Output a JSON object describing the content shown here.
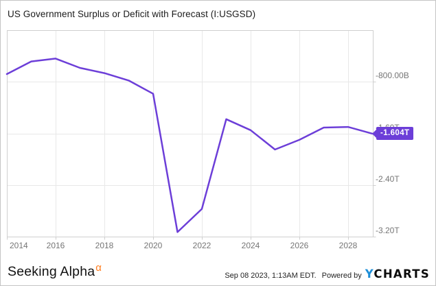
{
  "title": "US Government Surplus or Deficit with Forecast (I:USGSD)",
  "chart_data": {
    "type": "line",
    "title": "US Government Surplus or Deficit with Forecast (I:USGSD)",
    "ticker": "I:USGSD",
    "x": [
      2014,
      2015,
      2016,
      2017,
      2018,
      2019,
      2020,
      2021,
      2022,
      2023,
      2024,
      2025,
      2026,
      2027,
      2028,
      2029
    ],
    "values_trillions_usd": [
      -0.68,
      -0.485,
      -0.44,
      -0.585,
      -0.665,
      -0.78,
      -0.985,
      -3.13,
      -2.77,
      -1.38,
      -1.55,
      -1.85,
      -1.7,
      -1.51,
      -1.5,
      -1.604
    ],
    "x_tick_years": [
      2014,
      2016,
      2018,
      2020,
      2022,
      2024,
      2026,
      2028
    ],
    "x_tick_labels": [
      "2014",
      "2016",
      "2018",
      "2020",
      "2022",
      "2024",
      "2026",
      "2028"
    ],
    "y_tick_values_trillions": [
      -0.8,
      -1.6,
      -2.4,
      -3.2
    ],
    "y_tick_labels": [
      "-800.00B",
      "-1.60T",
      "-2.40T",
      "-3.20T"
    ],
    "xlim": [
      2014,
      2029
    ],
    "ylim_trillions": [
      -3.2,
      0
    ],
    "grid": true,
    "legend": "none",
    "last_value_label": "-1.604T"
  },
  "footer": {
    "brand": "Seeking Alpha",
    "brand_alpha_symbol": "α",
    "timestamp": "Sep 08 2023, 1:13AM EDT.",
    "powered_by": "Powered by",
    "ycharts_y": "Y",
    "ycharts_rest": "CHARTS"
  },
  "colors": {
    "line_purple": "#6c3ed8",
    "badge_text": "#ffffff",
    "seeking_alpha_orange": "#ff7d1e",
    "ycharts_blue": "#1e8fd8",
    "axis_text_grey": "#757575"
  }
}
